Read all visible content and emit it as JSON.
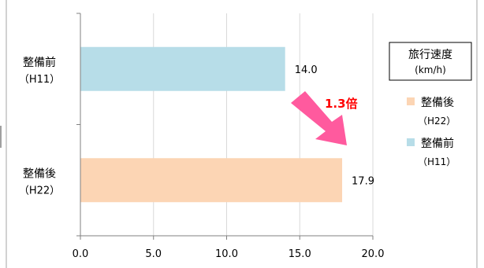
{
  "chart_data": {
    "type": "bar",
    "orientation": "horizontal",
    "categories": [
      {
        "line1": "整備前",
        "line2": "（H11）"
      },
      {
        "line1": "整備後",
        "line2": "（H22）"
      }
    ],
    "values": [
      14.0,
      17.9
    ],
    "value_labels": [
      "14.0",
      "17.9"
    ],
    "bar_colors": [
      "#b7dde8",
      "#fcd5b4"
    ],
    "xlim": [
      0,
      20
    ],
    "xticks": [
      "0.0",
      "5.0",
      "10.0",
      "15.0",
      "20.0"
    ],
    "grid": true,
    "legend": {
      "placement": "right",
      "title_line1": "旅行速度",
      "title_line2": "(km/h)",
      "entries": [
        {
          "line1": "整備後",
          "line2": "（H22）",
          "color": "#fcd5b4"
        },
        {
          "line1": "整備前",
          "line2": "（H11）",
          "color": "#b7dde8"
        }
      ]
    },
    "annotation": {
      "text": "1.3倍",
      "color": "#ff0000",
      "arrow_color": "#ff5a9e"
    }
  }
}
